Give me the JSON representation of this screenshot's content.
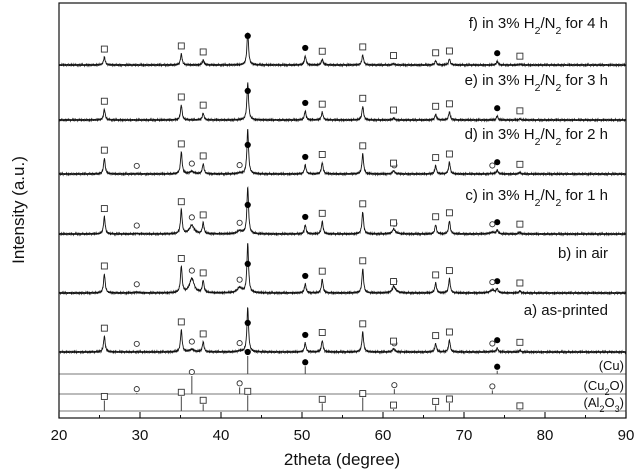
{
  "chart_data": {
    "type": "line",
    "xlabel": "2theta (degree)",
    "ylabel": "Intensity (a.u.)",
    "xlim": [
      20,
      90
    ],
    "x_ticks": [
      20,
      30,
      40,
      50,
      60,
      70,
      80,
      90
    ],
    "marker_legend": {
      "filled_circle": "Cu",
      "open_circle": "Cu2O",
      "open_square": "Al2O3"
    },
    "phase_peaks": {
      "Cu": [
        43.3,
        50.4,
        74.1
      ],
      "Cu2O": [
        29.6,
        36.4,
        42.3,
        61.4,
        73.5
      ],
      "Al2O3": [
        25.6,
        35.1,
        37.8,
        43.3,
        52.5,
        57.5,
        61.3,
        66.5,
        68.2,
        76.9
      ]
    },
    "peak_heights": {
      "Cu": [
        1.0,
        0.43,
        0.18
      ],
      "Cu2O": [
        0.05,
        1.0,
        0.37,
        0.27,
        0.2
      ],
      "Al2O3": [
        0.66,
        0.92,
        0.42,
        0.98,
        0.48,
        0.84,
        0.12,
        0.35,
        0.5,
        0.07
      ]
    },
    "series": [
      {
        "label": [
          "f) in 3% H",
          "2",
          "/N",
          "2",
          " for 4 h"
        ],
        "peak_intensity": {
          "Al2O3": 0.25,
          "Cu": 0.44,
          "Cu2O": 0.0
        }
      },
      {
        "label": [
          "e) in 3% H",
          "2",
          "/N",
          "2",
          " for 3 h"
        ],
        "peak_intensity": {
          "Al2O3": 0.34,
          "Cu": 0.44,
          "Cu2O": 0.0
        }
      },
      {
        "label": [
          "d) in 3% H",
          "2",
          "/N",
          "2",
          " for 2 h"
        ],
        "peak_intensity": {
          "Al2O3": 0.5,
          "Cu": 0.44,
          "Cu2O": 0.05
        }
      },
      {
        "label": [
          "c) in 3% H",
          "2",
          "/N",
          "2",
          " for 1 h"
        ],
        "peak_intensity": {
          "Al2O3": 0.55,
          "Cu": 0.44,
          "Cu2O": 0.18
        }
      },
      {
        "label": [
          "b) in air"
        ],
        "peak_intensity": {
          "Al2O3": 0.6,
          "Cu": 0.44,
          "Cu2O": 0.3
        }
      },
      {
        "label": [
          "a) as-printed"
        ],
        "peak_intensity": {
          "Al2O3": 0.5,
          "Cu": 0.44,
          "Cu2O": 0.05
        }
      }
    ],
    "reference_patterns": [
      {
        "label": [
          "(Cu)"
        ],
        "phase": "Cu"
      },
      {
        "label": [
          "(Cu",
          "2",
          "O)"
        ],
        "phase": "Cu2O"
      },
      {
        "label": [
          "(Al",
          "2",
          "O",
          "3",
          ")"
        ],
        "phase": "Al2O3"
      }
    ]
  }
}
